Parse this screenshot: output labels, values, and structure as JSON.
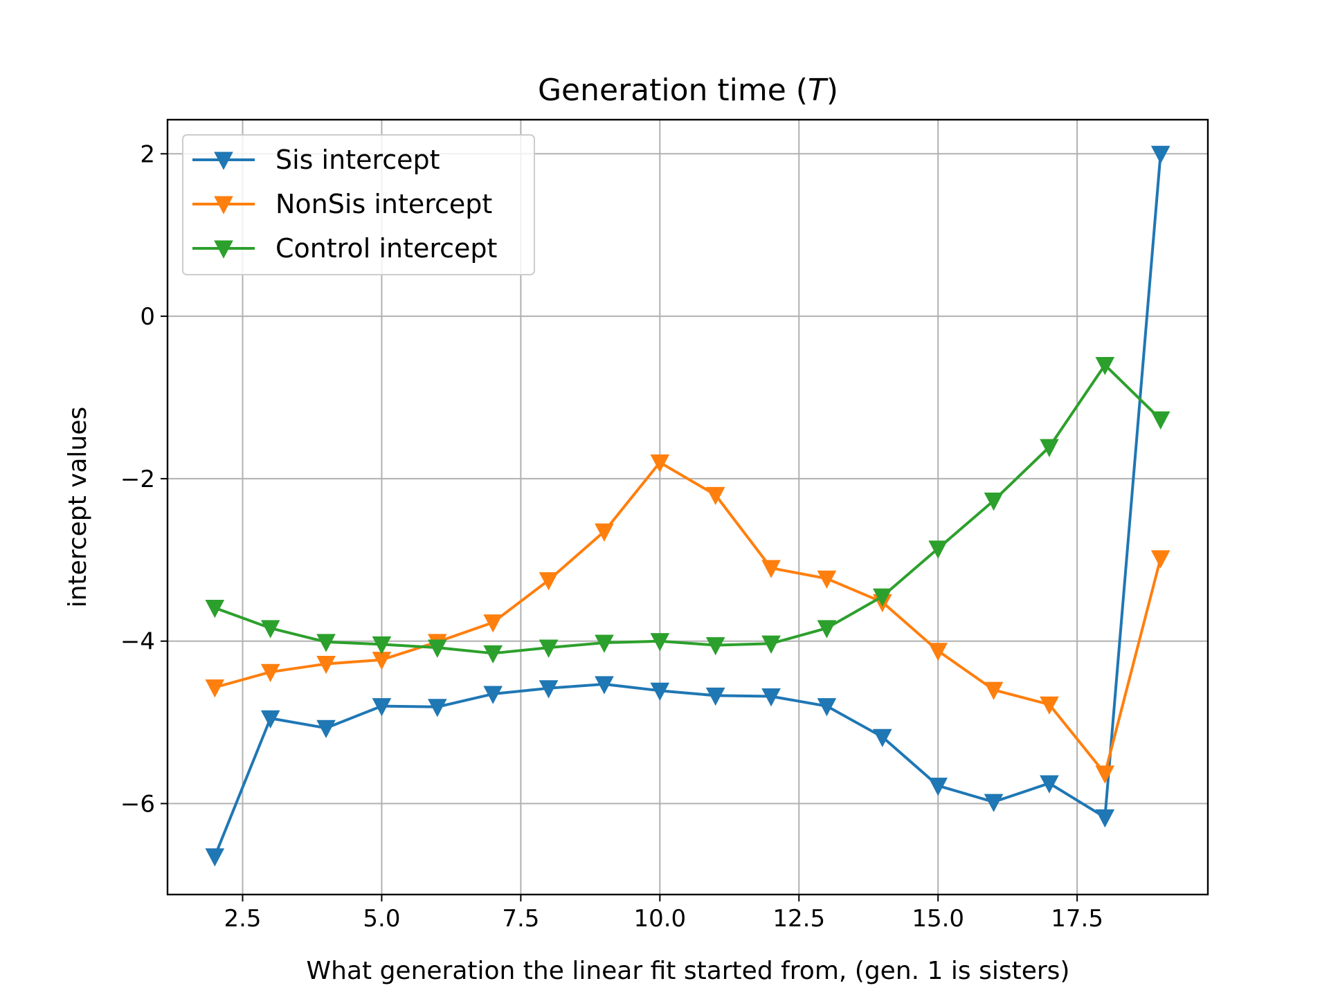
{
  "chart_data": {
    "type": "line",
    "title": "Generation time (",
    "title_var": "T",
    "title_close": ")",
    "xlabel": "What generation the linear fit started from, (gen. 1 is sisters)",
    "ylabel": "intercept values",
    "xlim": [
      1.15,
      19.85
    ],
    "ylim": [
      -7.12,
      2.42
    ],
    "x_ticks": [
      2.5,
      5.0,
      7.5,
      10.0,
      12.5,
      15.0,
      17.5
    ],
    "x_tick_labels": [
      "2.5",
      "5.0",
      "7.5",
      "10.0",
      "12.5",
      "15.0",
      "17.5"
    ],
    "y_ticks": [
      2,
      0,
      -2,
      -4,
      -6
    ],
    "y_tick_labels": [
      "2",
      "0",
      "−2",
      "−4",
      "−6"
    ],
    "grid": true,
    "legend_position": "top-left",
    "x": [
      2,
      3,
      4,
      5,
      6,
      7,
      8,
      9,
      10,
      11,
      12,
      13,
      14,
      15,
      16,
      17,
      18,
      19
    ],
    "series": [
      {
        "name": "Sis intercept",
        "color": "#1f77b4",
        "marker": "triangle-down",
        "values": [
          -6.65,
          -4.95,
          -5.07,
          -4.8,
          -4.81,
          -4.65,
          -4.58,
          -4.53,
          -4.61,
          -4.67,
          -4.68,
          -4.8,
          -5.18,
          -5.78,
          -5.98,
          -5.75,
          -6.17,
          2.0
        ]
      },
      {
        "name": "NonSis intercept",
        "color": "#ff7f0e",
        "marker": "triangle-down",
        "values": [
          -4.57,
          -4.38,
          -4.28,
          -4.23,
          -4.01,
          -3.77,
          -3.25,
          -2.65,
          -1.8,
          -2.2,
          -3.1,
          -3.23,
          -3.52,
          -4.12,
          -4.6,
          -4.78,
          -5.63,
          -2.98
        ]
      },
      {
        "name": "Control intercept",
        "color": "#2ca02c",
        "marker": "triangle-down",
        "values": [
          -3.59,
          -3.84,
          -4.01,
          -4.04,
          -4.08,
          -4.15,
          -4.08,
          -4.02,
          -4.0,
          -4.05,
          -4.03,
          -3.84,
          -3.45,
          -2.86,
          -2.27,
          -1.61,
          -0.6,
          -1.27
        ]
      }
    ]
  }
}
